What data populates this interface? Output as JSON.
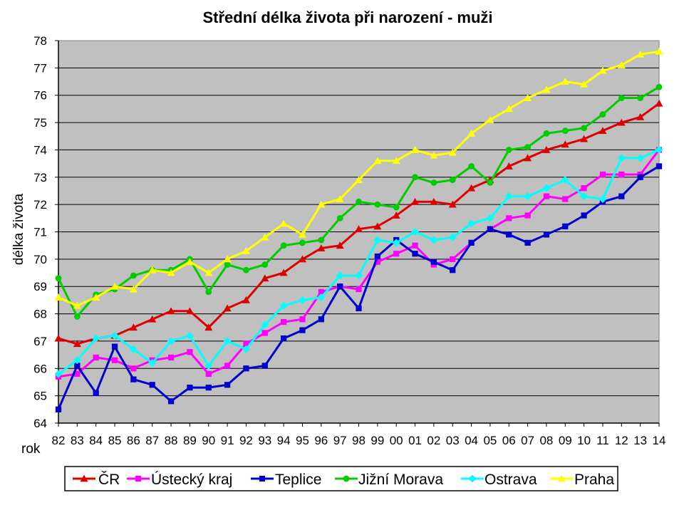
{
  "chart_data": {
    "type": "line",
    "title": "Střední délka života při narození - muži",
    "xlabel": "rok",
    "ylabel": "délka života",
    "ylim": [
      64,
      78
    ],
    "yticks": [
      "64",
      "65",
      "66",
      "67",
      "68",
      "69",
      "70",
      "71",
      "72",
      "73",
      "74",
      "75",
      "76",
      "77",
      "78"
    ],
    "categories": [
      "82",
      "83",
      "84",
      "85",
      "86",
      "87",
      "88",
      "89",
      "90",
      "91",
      "92",
      "93",
      "94",
      "95",
      "96",
      "97",
      "98",
      "99",
      "00",
      "01",
      "02",
      "03",
      "04",
      "05",
      "06",
      "07",
      "08",
      "09",
      "10",
      "11",
      "12",
      "13",
      "14"
    ],
    "grid": true,
    "legend_position": "bottom",
    "background": "#c0c0c0",
    "series": [
      {
        "name": "ČR",
        "color": "#dd0000",
        "marker": "triangle",
        "values": [
          67.1,
          66.9,
          67.1,
          67.2,
          67.5,
          67.8,
          68.1,
          68.1,
          67.5,
          68.2,
          68.5,
          69.3,
          69.5,
          70.0,
          70.4,
          70.5,
          71.1,
          71.2,
          71.6,
          72.1,
          72.1,
          72.0,
          72.6,
          72.9,
          73.4,
          73.7,
          74.0,
          74.2,
          74.4,
          74.7,
          75.0,
          75.2,
          75.7
        ]
      },
      {
        "name": "Ústecký kraj",
        "color": "#ff00ff",
        "marker": "square",
        "values": [
          65.7,
          65.8,
          66.4,
          66.3,
          66.0,
          66.3,
          66.4,
          66.6,
          65.8,
          66.1,
          66.9,
          67.3,
          67.7,
          67.8,
          68.8,
          69.0,
          68.9,
          69.9,
          70.2,
          70.5,
          69.8,
          70.0,
          70.6,
          71.1,
          71.5,
          71.6,
          72.3,
          72.2,
          72.6,
          73.1,
          73.1,
          73.1,
          74.0
        ]
      },
      {
        "name": "Teplice",
        "color": "#0000cc",
        "marker": "square",
        "values": [
          64.5,
          66.1,
          65.1,
          66.8,
          65.6,
          65.4,
          64.8,
          65.3,
          65.3,
          65.4,
          66.0,
          66.1,
          67.1,
          67.4,
          67.8,
          69.0,
          68.2,
          70.1,
          70.7,
          70.2,
          69.9,
          69.6,
          70.6,
          71.1,
          70.9,
          70.6,
          70.9,
          71.2,
          71.6,
          72.1,
          72.3,
          73.0,
          73.4
        ]
      },
      {
        "name": "Jižní Morava",
        "color": "#00cc00",
        "marker": "circle",
        "values": [
          69.3,
          67.9,
          68.7,
          68.9,
          69.4,
          69.6,
          69.6,
          70.0,
          68.8,
          69.8,
          69.6,
          69.8,
          70.5,
          70.6,
          70.7,
          71.5,
          72.1,
          72.0,
          71.9,
          73.0,
          72.8,
          72.9,
          73.4,
          72.8,
          74.0,
          74.1,
          74.6,
          74.7,
          74.8,
          75.3,
          75.9,
          75.9,
          76.3
        ]
      },
      {
        "name": "Ostrava",
        "color": "#00ffff",
        "marker": "diamond",
        "values": [
          65.8,
          66.3,
          67.1,
          67.2,
          66.7,
          66.2,
          67.0,
          67.2,
          66.1,
          67.0,
          66.7,
          67.6,
          68.3,
          68.5,
          68.6,
          69.4,
          69.4,
          70.7,
          70.6,
          71.0,
          70.7,
          70.8,
          71.3,
          71.5,
          72.3,
          72.3,
          72.6,
          72.9,
          72.3,
          72.2,
          73.7,
          73.7,
          74.0
        ]
      },
      {
        "name": "Praha",
        "color": "#ffff00",
        "marker": "triangle",
        "values": [
          68.6,
          68.3,
          68.6,
          69.0,
          68.9,
          69.6,
          69.5,
          69.9,
          69.5,
          70.0,
          70.3,
          70.8,
          71.3,
          70.9,
          72.0,
          72.2,
          72.9,
          73.6,
          73.6,
          74.0,
          73.8,
          73.9,
          74.6,
          75.1,
          75.5,
          75.9,
          76.2,
          76.5,
          76.4,
          76.9,
          77.1,
          77.5,
          77.6
        ]
      }
    ]
  }
}
